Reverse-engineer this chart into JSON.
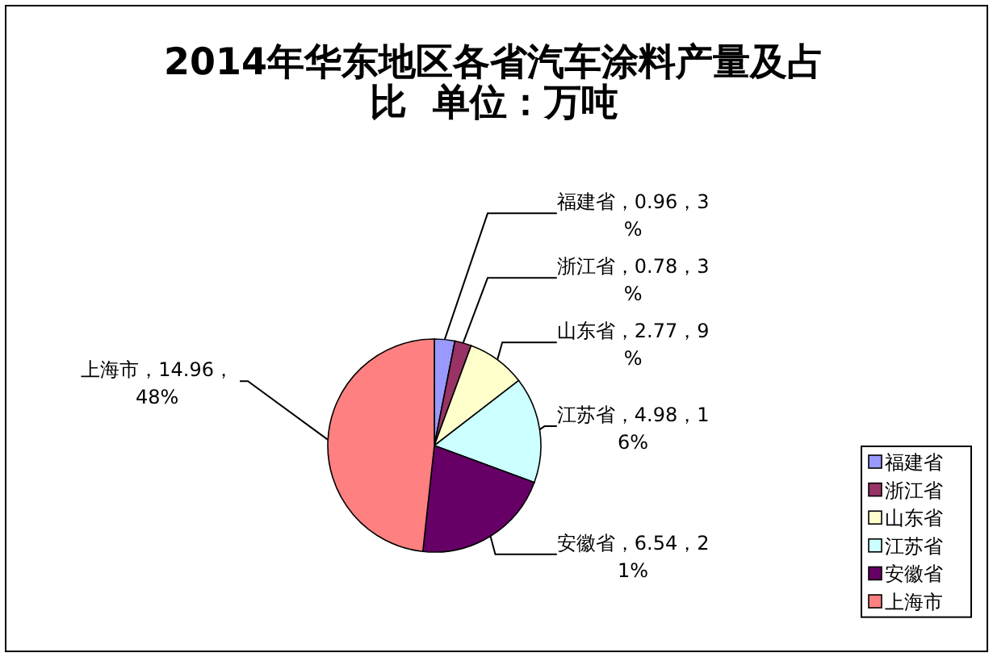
{
  "chart_data": {
    "type": "pie",
    "title": "2014年华东地区各省汽车涂料产量及占比  单位：万吨",
    "categories": [
      "福建省",
      "浙江省",
      "山东省",
      "江苏省",
      "安徽省",
      "上海市"
    ],
    "values": [
      0.96,
      0.78,
      2.77,
      4.98,
      6.54,
      14.96
    ],
    "colors": [
      "#9999ff",
      "#993366",
      "#ffffcc",
      "#ccffff",
      "#660066",
      "#ff8080"
    ],
    "value_labels": [
      "福建省，0.96，3%",
      "浙江省，0.78，3%",
      "山东省，2.77，9%",
      "江苏省，4.98，16%",
      "安徽省，6.54，21%",
      "上海市，14.96，48%"
    ],
    "legend": "bottom right"
  }
}
